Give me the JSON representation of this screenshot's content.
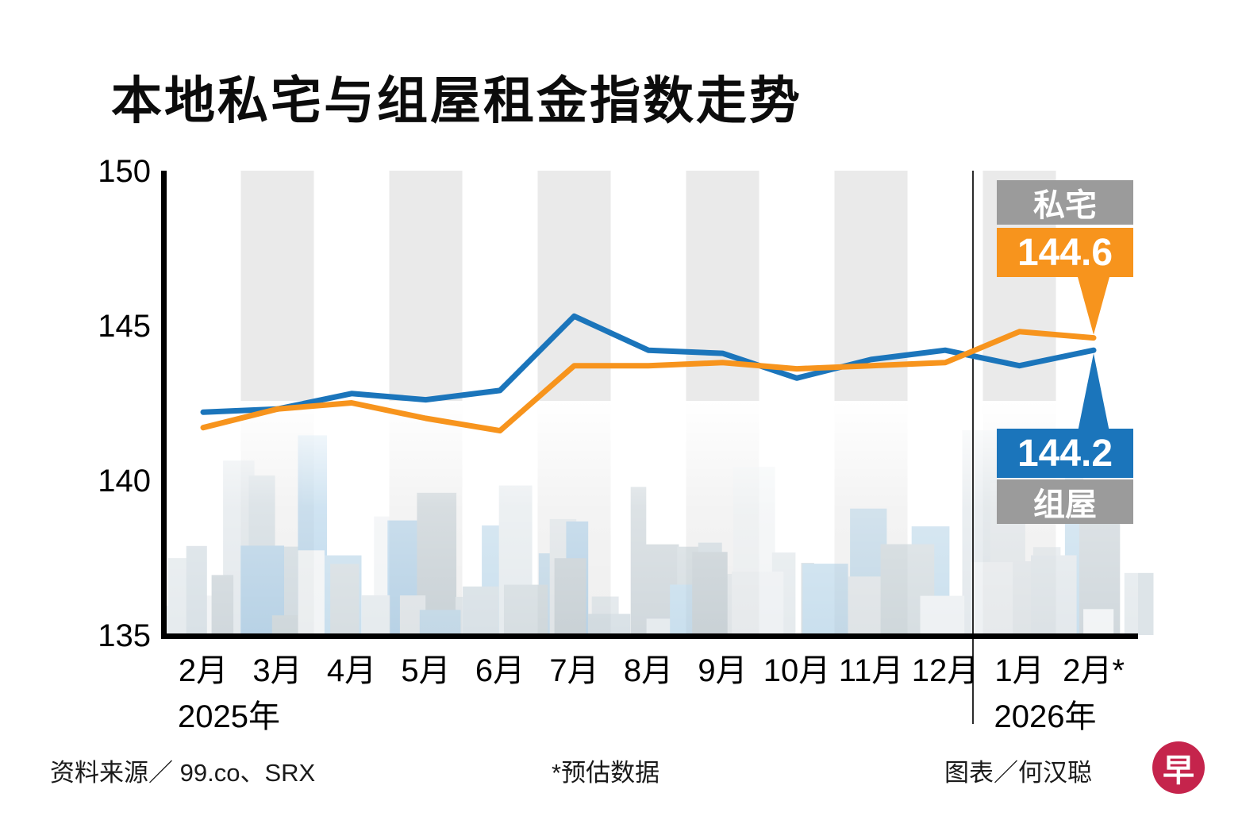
{
  "title": "本地私宅与组屋租金指数走势",
  "chart_data": {
    "type": "line",
    "title": "本地私宅与组屋租金指数走势",
    "x_labels": [
      "2月",
      "3月",
      "4月",
      "5月",
      "6月",
      "7月",
      "8月",
      "9月",
      "10月",
      "11月",
      "12月",
      "1月",
      "2月*"
    ],
    "year_labels": [
      {
        "text": "2025年",
        "index": 0
      },
      {
        "text": "2026年",
        "index": 11
      }
    ],
    "ylim": [
      135,
      150
    ],
    "yticks": [
      150,
      145,
      140,
      135
    ],
    "grid": false,
    "legend_position": "right-callouts",
    "series": [
      {
        "name": "私宅",
        "color": "#f7941d",
        "values": [
          141.7,
          142.3,
          142.5,
          142.0,
          141.6,
          143.7,
          143.7,
          143.8,
          143.6,
          143.7,
          143.8,
          144.8,
          144.6
        ]
      },
      {
        "name": "组屋",
        "color": "#1b75bb",
        "values": [
          142.2,
          142.3,
          142.8,
          142.6,
          142.9,
          145.3,
          144.2,
          144.1,
          143.3,
          143.9,
          144.2,
          143.7,
          144.2
        ]
      }
    ],
    "callouts": {
      "private_label": "私宅",
      "private_value": "144.6",
      "hdb_value": "144.2",
      "hdb_label": "组屋"
    }
  },
  "colors": {
    "private": "#f7941d",
    "hdb": "#1b75bb",
    "label_gray": "#9b9b9b",
    "logo_red": "#c5244c",
    "stripe": "#eaeaea",
    "axis": "#000000"
  },
  "footer": {
    "source": "资料来源／ 99.co、SRX",
    "note": "*预估数据",
    "credit": "图表／何汉聪",
    "logo_char": "早"
  }
}
